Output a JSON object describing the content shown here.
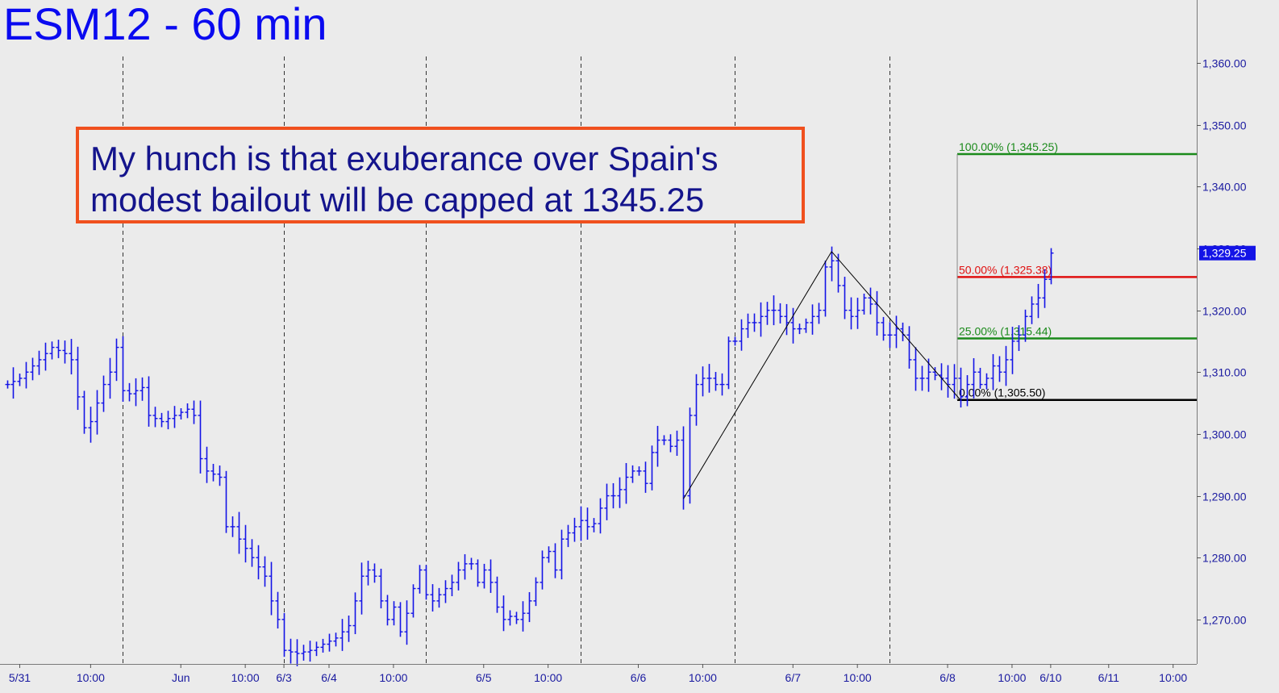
{
  "title": "ESM12 - 60 min",
  "annotation": {
    "line1": "My hunch is that exuberance over Spain's",
    "line2": "modest bailout will be capped at 1345.25",
    "border_color": "#f0501e",
    "text_color": "#14148c"
  },
  "colors": {
    "background": "#ebebeb",
    "bars": "#1414e6",
    "axis_text": "#1a1aa0",
    "grid": "#333333",
    "fib_100": "#1a8a1a",
    "fib_50": "#e01010",
    "fib_25": "#1a8a1a",
    "fib_0": "#000000",
    "price_tag_bg": "#1414e6"
  },
  "chart_data": {
    "type": "ohlc",
    "title": "ESM12 - 60 min",
    "ylim": [
      1260.5,
      1371
    ],
    "yticks": [
      1270,
      1280,
      1290,
      1300,
      1310,
      1320,
      1330,
      1340,
      1350,
      1360
    ],
    "ytick_labels": [
      "1,270.00",
      "1,280.00",
      "1,290.00",
      "1,300.00",
      "1,310.00",
      "1,320.00",
      "1,330.00",
      "1,340.00",
      "1,350.00",
      "1,360.00"
    ],
    "xticks": [
      {
        "label": "5/31",
        "bar": 2
      },
      {
        "label": "10:00",
        "bar": 13
      },
      {
        "label": "Jun",
        "bar": 27
      },
      {
        "label": "10:00",
        "bar": 37
      },
      {
        "label": "6/3",
        "bar": 43
      },
      {
        "label": "6/4",
        "bar": 50
      },
      {
        "label": "10:00",
        "bar": 60
      },
      {
        "label": "6/5",
        "bar": 74
      },
      {
        "label": "10:00",
        "bar": 84
      },
      {
        "label": "6/6",
        "bar": 98
      },
      {
        "label": "10:00",
        "bar": 108
      },
      {
        "label": "6/7",
        "bar": 122
      },
      {
        "label": "10:00",
        "bar": 132
      },
      {
        "label": "6/8",
        "bar": 146
      },
      {
        "label": "10:00",
        "bar": 156
      },
      {
        "label": "6/10",
        "bar": 162
      },
      {
        "label": "6/11",
        "bar": 171
      },
      {
        "label": "10:00",
        "bar": 181
      }
    ],
    "session_dividers": [
      18,
      43,
      65,
      89,
      113,
      137
    ],
    "last_price": {
      "value": 1329.25,
      "label": "1,329.25"
    },
    "close_path": [
      [
        0,
        1308
      ],
      [
        2,
        1309
      ],
      [
        5,
        1312
      ],
      [
        7,
        1314
      ],
      [
        9,
        1313
      ],
      [
        10,
        1312
      ],
      [
        11,
        1306
      ],
      [
        12,
        1301
      ],
      [
        13,
        1302
      ],
      [
        14,
        1305
      ],
      [
        15,
        1308
      ],
      [
        16,
        1310
      ],
      [
        17,
        1314
      ],
      [
        18,
        1307
      ],
      [
        19,
        1306.5
      ],
      [
        21,
        1307.5
      ],
      [
        22,
        1303
      ],
      [
        24,
        1302
      ],
      [
        26,
        1303
      ],
      [
        28,
        1304
      ],
      [
        29,
        1303
      ],
      [
        30,
        1296
      ],
      [
        31,
        1294
      ],
      [
        33,
        1293
      ],
      [
        34,
        1285
      ],
      [
        35,
        1285
      ],
      [
        36,
        1283
      ],
      [
        38,
        1280
      ],
      [
        40,
        1277
      ],
      [
        41,
        1273
      ],
      [
        42,
        1270
      ],
      [
        43,
        1265
      ],
      [
        45,
        1264.5
      ],
      [
        47,
        1265
      ],
      [
        49,
        1266
      ],
      [
        51,
        1267
      ],
      [
        53,
        1269
      ],
      [
        54,
        1273
      ],
      [
        55,
        1277
      ],
      [
        56,
        1278
      ],
      [
        57,
        1277
      ],
      [
        58,
        1273
      ],
      [
        59,
        1270
      ],
      [
        60,
        1272
      ],
      [
        61,
        1268
      ],
      [
        62,
        1271
      ],
      [
        63,
        1275
      ],
      [
        64,
        1278
      ],
      [
        65,
        1274
      ],
      [
        66,
        1273
      ],
      [
        67,
        1274
      ],
      [
        68,
        1275
      ],
      [
        69,
        1276
      ],
      [
        70,
        1278
      ],
      [
        71,
        1279
      ],
      [
        72,
        1279
      ],
      [
        73,
        1276
      ],
      [
        74,
        1278
      ],
      [
        75,
        1276
      ],
      [
        76,
        1272
      ],
      [
        77,
        1270
      ],
      [
        78,
        1270.5
      ],
      [
        79,
        1270
      ],
      [
        80,
        1271
      ],
      [
        81,
        1273
      ],
      [
        82,
        1276
      ],
      [
        83,
        1280
      ],
      [
        84,
        1281
      ],
      [
        85,
        1278
      ],
      [
        86,
        1283
      ],
      [
        87,
        1284
      ],
      [
        88,
        1285
      ],
      [
        89,
        1286
      ],
      [
        90,
        1285
      ],
      [
        91,
        1285.5
      ],
      [
        92,
        1288
      ],
      [
        93,
        1290
      ],
      [
        94,
        1290
      ],
      [
        95,
        1291
      ],
      [
        96,
        1293
      ],
      [
        97,
        1294
      ],
      [
        98,
        1294
      ],
      [
        99,
        1292
      ],
      [
        100,
        1297
      ],
      [
        101,
        1299
      ],
      [
        102,
        1299
      ],
      [
        103,
        1298
      ],
      [
        104,
        1299
      ],
      [
        105,
        1290
      ],
      [
        106,
        1303
      ],
      [
        107,
        1308
      ],
      [
        108,
        1309
      ],
      [
        109,
        1309
      ],
      [
        110,
        1308
      ],
      [
        111,
        1308
      ],
      [
        112,
        1315
      ],
      [
        113,
        1315
      ],
      [
        114,
        1317
      ],
      [
        115,
        1318
      ],
      [
        116,
        1318
      ],
      [
        117,
        1319
      ],
      [
        118,
        1320
      ],
      [
        119,
        1320
      ],
      [
        120,
        1319
      ],
      [
        121,
        1318
      ],
      [
        122,
        1317
      ],
      [
        123,
        1317
      ],
      [
        124,
        1318
      ],
      [
        125,
        1319
      ],
      [
        126,
        1320
      ],
      [
        127,
        1327
      ],
      [
        128,
        1328
      ],
      [
        129,
        1324
      ],
      [
        130,
        1320
      ],
      [
        131,
        1319
      ],
      [
        132,
        1320
      ],
      [
        133,
        1322
      ],
      [
        134,
        1321
      ],
      [
        135,
        1318
      ],
      [
        136,
        1316
      ],
      [
        137,
        1316
      ],
      [
        138,
        1317
      ],
      [
        139,
        1316
      ],
      [
        140,
        1312
      ],
      [
        141,
        1309
      ],
      [
        142,
        1309
      ],
      [
        143,
        1310
      ],
      [
        144,
        1309.5
      ],
      [
        145,
        1309
      ],
      [
        146,
        1308
      ],
      [
        147,
        1309
      ],
      [
        148,
        1306
      ],
      [
        149,
        1308
      ],
      [
        150,
        1310
      ],
      [
        151,
        1308
      ],
      [
        152,
        1309
      ],
      [
        153,
        1311
      ],
      [
        154,
        1310
      ],
      [
        155,
        1312
      ],
      [
        156,
        1315
      ],
      [
        157,
        1316
      ],
      [
        158,
        1319
      ],
      [
        159,
        1321
      ],
      [
        160,
        1322
      ],
      [
        161,
        1325
      ],
      [
        162,
        1329.25
      ]
    ],
    "pattern_lines": [
      {
        "from": [
          105,
          1289.5
        ],
        "to": [
          128,
          1329.5
        ]
      },
      {
        "from": [
          128,
          1329.5
        ],
        "to": [
          148,
          1305.5
        ]
      }
    ],
    "fib_levels": [
      {
        "pct": "100.00%",
        "value": 1345.25,
        "label": "100.00% (1,345.25)",
        "color_key": "fib_100",
        "from_bar": 148
      },
      {
        "pct": "50.00%",
        "value": 1325.38,
        "label": "50.00% (1,325.38)",
        "color_key": "fib_50",
        "from_bar": 148
      },
      {
        "pct": "25.00%",
        "value": 1315.44,
        "label": "25.00% (1,315.44)",
        "color_key": "fib_25",
        "from_bar": 148
      },
      {
        "pct": "0.00%",
        "value": 1305.5,
        "label": "0.00% (1,305.50)",
        "color_key": "fib_0",
        "from_bar": 148
      }
    ]
  }
}
